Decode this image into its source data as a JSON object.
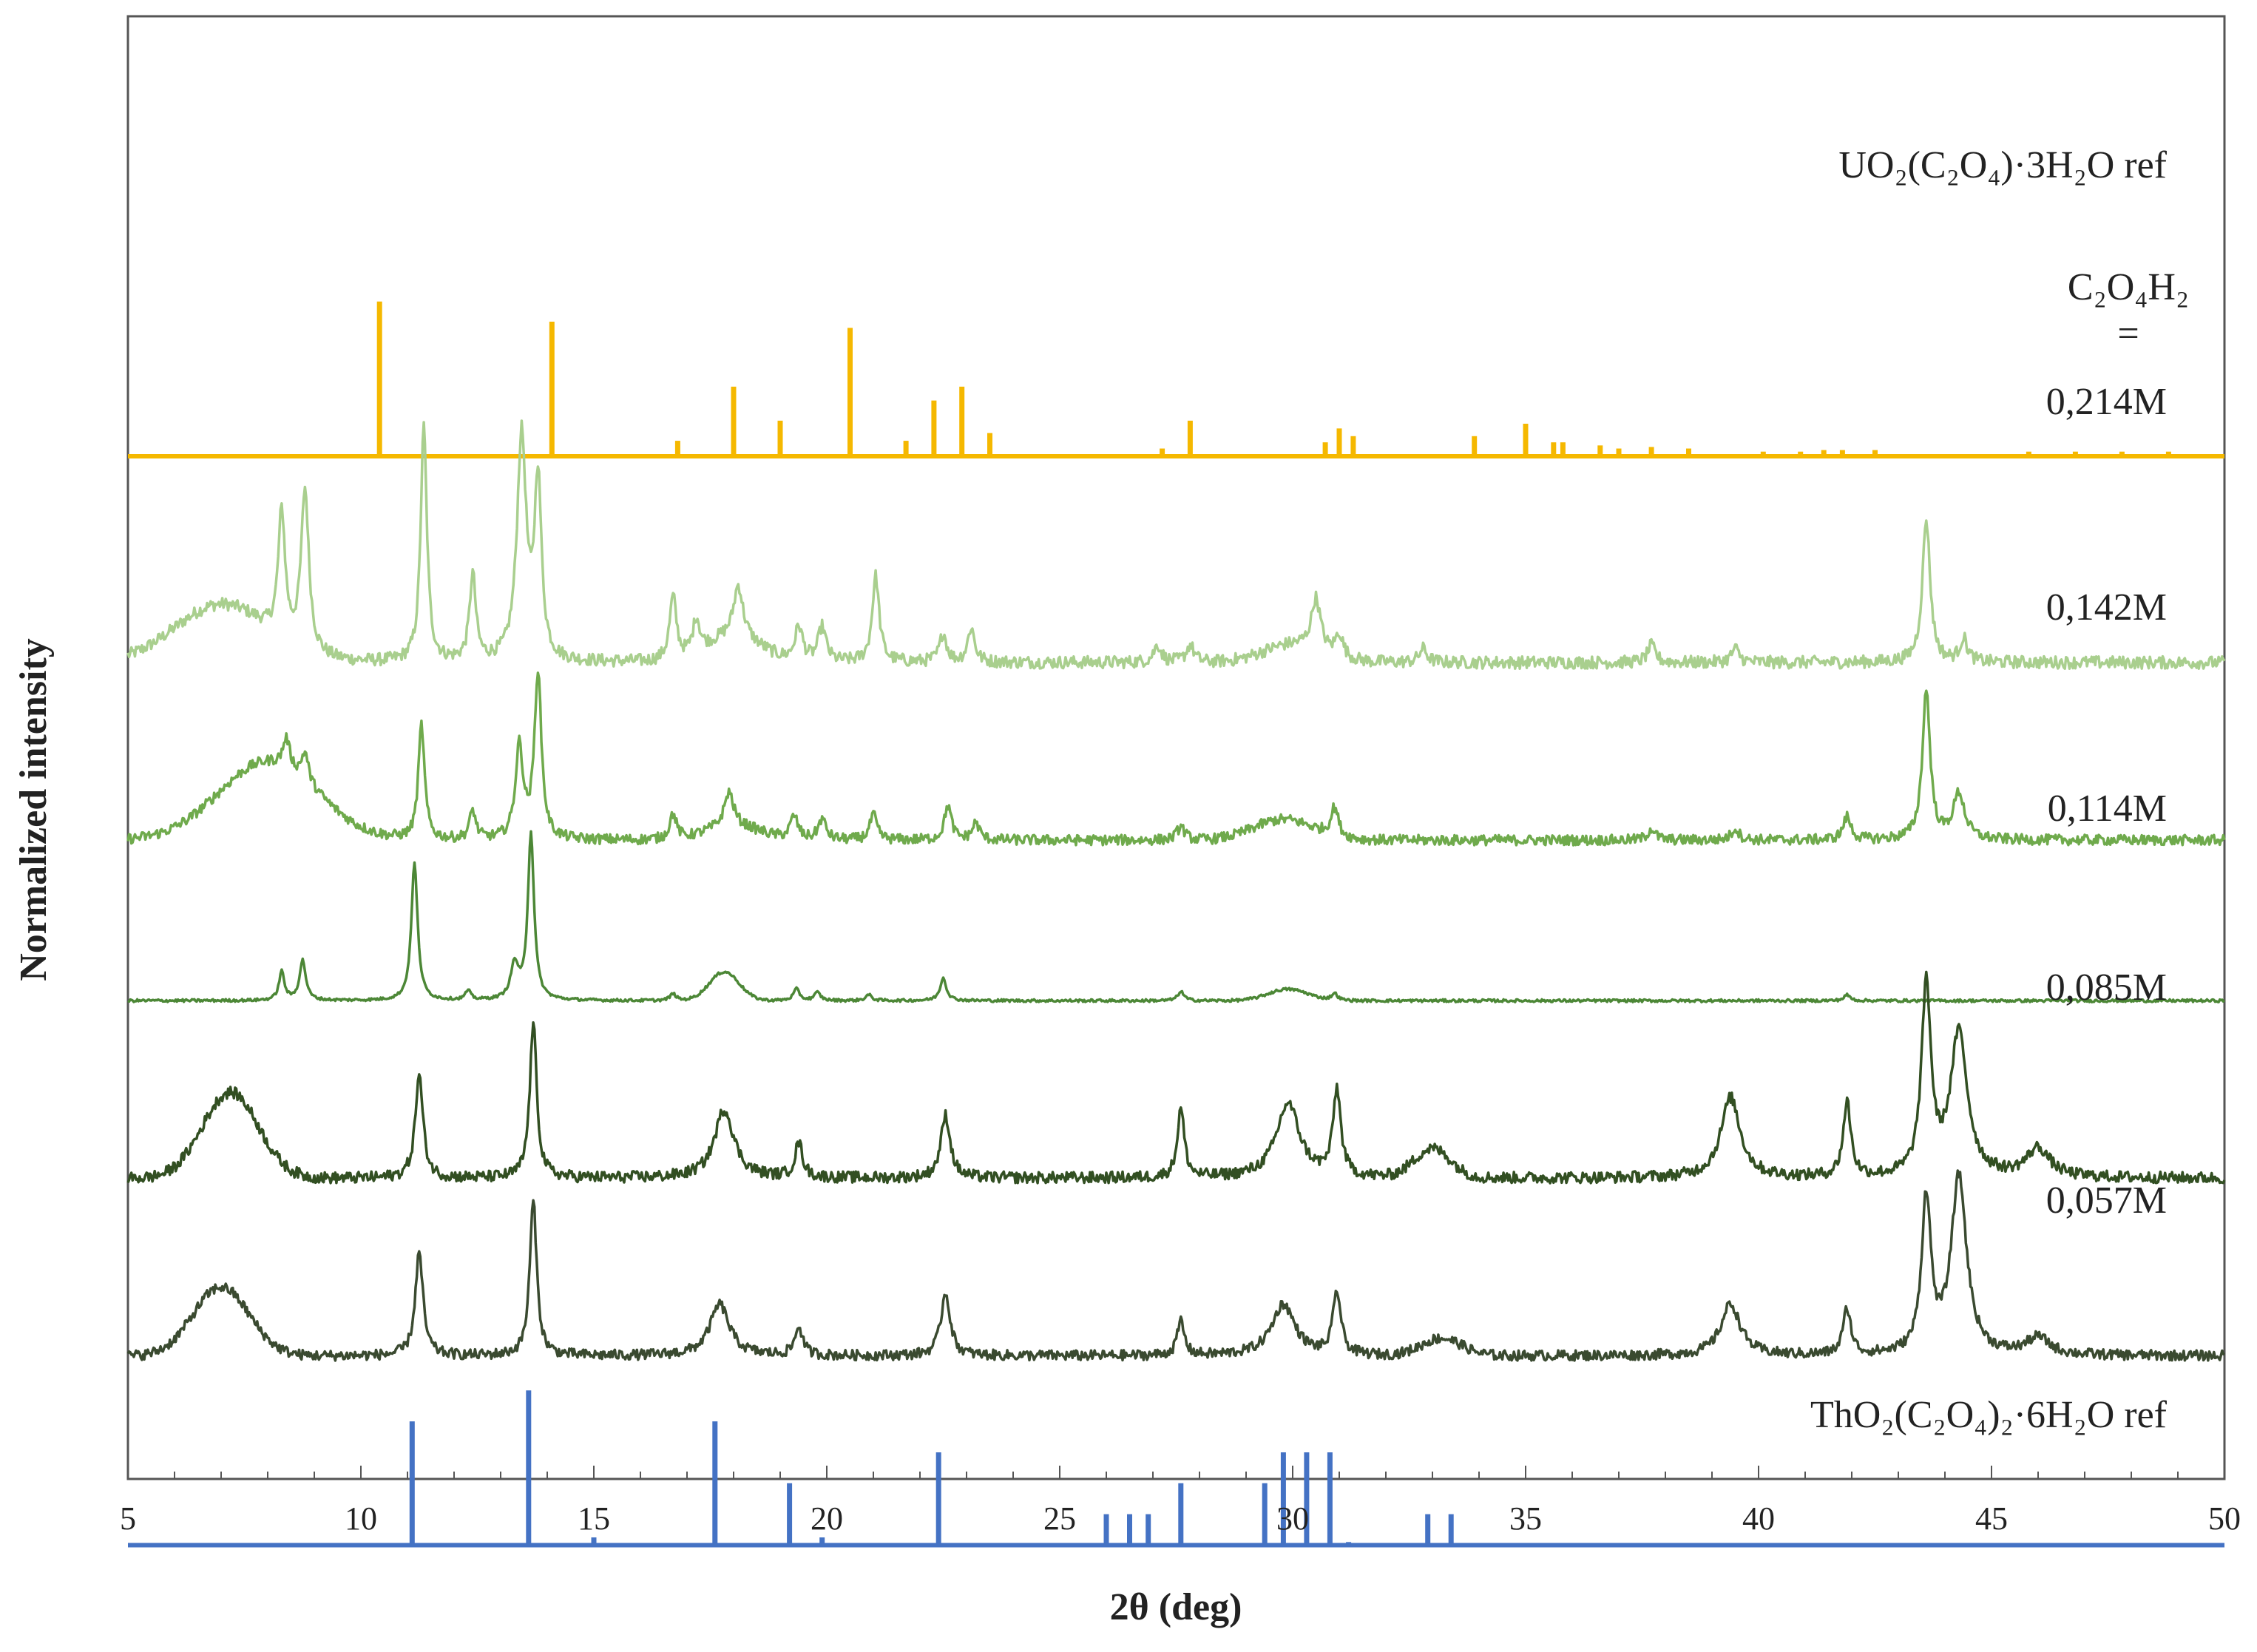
{
  "chart_data": {
    "type": "line",
    "title": "",
    "xlabel": "2θ (deg)",
    "ylabel": "Normalized intensity",
    "xlim": [
      5,
      50
    ],
    "xticks": [
      5,
      10,
      15,
      20,
      25,
      30,
      35,
      40,
      45,
      50
    ],
    "grid": false,
    "legend": "none",
    "label_heading": [
      "C₂O₄H₂",
      "="
    ],
    "series": [
      {
        "name": "UO₂(C₂O₄)·3H₂O  ref",
        "kind": "sticks",
        "color": "#f5b800",
        "offset": 8.2,
        "peaks": [
          [
            10.4,
            1.0
          ],
          [
            14.1,
            0.87
          ],
          [
            16.8,
            0.1
          ],
          [
            18.0,
            0.45
          ],
          [
            19.0,
            0.23
          ],
          [
            20.5,
            0.83
          ],
          [
            21.7,
            0.1
          ],
          [
            22.3,
            0.36
          ],
          [
            22.9,
            0.45
          ],
          [
            23.5,
            0.15
          ],
          [
            27.2,
            0.05
          ],
          [
            27.8,
            0.23
          ],
          [
            30.7,
            0.09
          ],
          [
            31.0,
            0.18
          ],
          [
            31.3,
            0.13
          ],
          [
            33.9,
            0.13
          ],
          [
            35.0,
            0.21
          ],
          [
            35.6,
            0.09
          ],
          [
            35.8,
            0.09
          ],
          [
            36.6,
            0.07
          ],
          [
            37.0,
            0.05
          ],
          [
            37.7,
            0.06
          ],
          [
            38.5,
            0.05
          ],
          [
            40.1,
            0.03
          ],
          [
            40.9,
            0.03
          ],
          [
            41.4,
            0.04
          ],
          [
            41.8,
            0.04
          ],
          [
            42.5,
            0.04
          ],
          [
            45.8,
            0.03
          ],
          [
            46.8,
            0.03
          ],
          [
            47.8,
            0.03
          ],
          [
            48.8,
            0.03
          ]
        ]
      },
      {
        "name": "0,214M",
        "kind": "profile",
        "color": "#a9cf8e",
        "offset": 6.4,
        "halos": [
          [
            7.0,
            0.5,
            1.4
          ],
          [
            18.0,
            0.22,
            0.8
          ],
          [
            30.0,
            0.15,
            0.9
          ]
        ],
        "peaks": [
          [
            8.3,
            1.1,
            0.09
          ],
          [
            8.8,
            1.4,
            0.1
          ],
          [
            11.35,
            2.05,
            0.08
          ],
          [
            12.4,
            0.75,
            0.08
          ],
          [
            13.45,
            1.95,
            0.12
          ],
          [
            13.8,
            1.55,
            0.09
          ],
          [
            16.7,
            0.55,
            0.09
          ],
          [
            17.2,
            0.3,
            0.09
          ],
          [
            18.1,
            0.45,
            0.12
          ],
          [
            19.4,
            0.3,
            0.1
          ],
          [
            19.9,
            0.3,
            0.1
          ],
          [
            21.05,
            0.75,
            0.09
          ],
          [
            22.5,
            0.25,
            0.09
          ],
          [
            23.1,
            0.3,
            0.09
          ],
          [
            27.1,
            0.15,
            0.1
          ],
          [
            27.8,
            0.15,
            0.1
          ],
          [
            30.5,
            0.45,
            0.12
          ],
          [
            31.0,
            0.2,
            0.1
          ],
          [
            32.8,
            0.12,
            0.1
          ],
          [
            37.7,
            0.15,
            0.1
          ],
          [
            39.5,
            0.12,
            0.1
          ],
          [
            43.6,
            1.25,
            0.1
          ],
          [
            44.4,
            0.2,
            0.1
          ]
        ],
        "noise": 0.055
      },
      {
        "name": "0,142M",
        "kind": "profile",
        "color": "#6faa4c",
        "offset": 4.85,
        "halos": [
          [
            8.0,
            0.68,
            1.5
          ],
          [
            18.0,
            0.12,
            0.8
          ],
          [
            29.8,
            0.18,
            0.9
          ]
        ],
        "peaks": [
          [
            8.4,
            0.25,
            0.09
          ],
          [
            8.8,
            0.25,
            0.09
          ],
          [
            11.3,
            1.0,
            0.08
          ],
          [
            12.4,
            0.25,
            0.08
          ],
          [
            13.4,
            0.8,
            0.1
          ],
          [
            13.8,
            1.45,
            0.09
          ],
          [
            16.7,
            0.22,
            0.09
          ],
          [
            17.9,
            0.3,
            0.12
          ],
          [
            19.3,
            0.2,
            0.1
          ],
          [
            19.9,
            0.18,
            0.1
          ],
          [
            21.0,
            0.22,
            0.09
          ],
          [
            22.6,
            0.3,
            0.09
          ],
          [
            23.2,
            0.15,
            0.09
          ],
          [
            27.6,
            0.12,
            0.1
          ],
          [
            30.9,
            0.25,
            0.1
          ],
          [
            37.7,
            0.1,
            0.1
          ],
          [
            39.5,
            0.1,
            0.1
          ],
          [
            41.9,
            0.2,
            0.1
          ],
          [
            43.6,
            1.3,
            0.1
          ],
          [
            44.3,
            0.4,
            0.15
          ]
        ],
        "noise": 0.045
      },
      {
        "name": "0,114M",
        "kind": "profile",
        "color": "#4c8736",
        "offset": 3.45,
        "halos": [
          [
            17.8,
            0.25,
            0.45
          ],
          [
            29.9,
            0.1,
            0.6
          ]
        ],
        "peaks": [
          [
            8.3,
            0.25,
            0.07
          ],
          [
            8.75,
            0.35,
            0.08
          ],
          [
            11.15,
            1.2,
            0.08
          ],
          [
            12.3,
            0.08,
            0.07
          ],
          [
            13.3,
            0.3,
            0.1
          ],
          [
            13.65,
            1.45,
            0.08
          ],
          [
            16.7,
            0.06,
            0.08
          ],
          [
            19.35,
            0.1,
            0.08
          ],
          [
            19.8,
            0.07,
            0.08
          ],
          [
            20.9,
            0.05,
            0.08
          ],
          [
            22.5,
            0.2,
            0.08
          ],
          [
            27.6,
            0.08,
            0.08
          ],
          [
            30.9,
            0.06,
            0.08
          ],
          [
            41.9,
            0.05,
            0.08
          ]
        ],
        "noise": 0.012
      },
      {
        "name": "0,085M",
        "kind": "profile",
        "color": "#324f22",
        "offset": 1.9,
        "halos": [
          [
            7.2,
            0.75,
            0.85
          ],
          [
            33.0,
            0.25,
            0.55
          ]
        ],
        "peaks": [
          [
            11.25,
            0.9,
            0.1
          ],
          [
            13.7,
            1.35,
            0.09
          ],
          [
            17.8,
            0.6,
            0.25
          ],
          [
            19.4,
            0.3,
            0.1
          ],
          [
            22.55,
            0.55,
            0.12
          ],
          [
            27.6,
            0.6,
            0.09
          ],
          [
            29.9,
            0.65,
            0.3
          ],
          [
            30.95,
            0.75,
            0.1
          ],
          [
            39.4,
            0.7,
            0.25
          ],
          [
            41.9,
            0.65,
            0.1
          ],
          [
            43.6,
            1.65,
            0.12
          ],
          [
            44.3,
            1.25,
            0.22
          ],
          [
            46.0,
            0.25,
            0.3
          ]
        ],
        "noise": 0.05
      },
      {
        "name": "0,057M",
        "kind": "profile",
        "color": "#3a4a30",
        "offset": 0.35,
        "halos": [
          [
            7.0,
            0.6,
            0.85
          ],
          [
            33.2,
            0.15,
            0.6
          ]
        ],
        "peaks": [
          [
            11.25,
            0.9,
            0.1
          ],
          [
            13.7,
            1.35,
            0.09
          ],
          [
            17.7,
            0.45,
            0.25
          ],
          [
            19.4,
            0.25,
            0.1
          ],
          [
            22.55,
            0.55,
            0.12
          ],
          [
            27.6,
            0.3,
            0.09
          ],
          [
            29.8,
            0.45,
            0.3
          ],
          [
            30.95,
            0.55,
            0.1
          ],
          [
            39.4,
            0.45,
            0.25
          ],
          [
            41.9,
            0.4,
            0.1
          ],
          [
            43.6,
            1.35,
            0.12
          ],
          [
            44.3,
            1.55,
            0.2
          ],
          [
            46.0,
            0.15,
            0.3
          ]
        ],
        "noise": 0.045
      },
      {
        "name": "ThO₂(C₂O₄)₂·6H₂O  ref",
        "kind": "sticks",
        "color": "#4472c4",
        "offset": -1.3,
        "peaks": [
          [
            11.1,
            0.8
          ],
          [
            13.6,
            1.0
          ],
          [
            17.6,
            0.8
          ],
          [
            19.2,
            0.4
          ],
          [
            22.4,
            0.6
          ],
          [
            26.0,
            0.2
          ],
          [
            26.5,
            0.2
          ],
          [
            26.9,
            0.2
          ],
          [
            27.6,
            0.4
          ],
          [
            29.4,
            0.4
          ],
          [
            29.8,
            0.6
          ],
          [
            30.3,
            0.6
          ],
          [
            30.8,
            0.6
          ],
          [
            32.9,
            0.2
          ],
          [
            33.4,
            0.2
          ],
          [
            15.0,
            0.05
          ],
          [
            19.9,
            0.05
          ],
          [
            31.2,
            0.02
          ]
        ]
      }
    ]
  }
}
